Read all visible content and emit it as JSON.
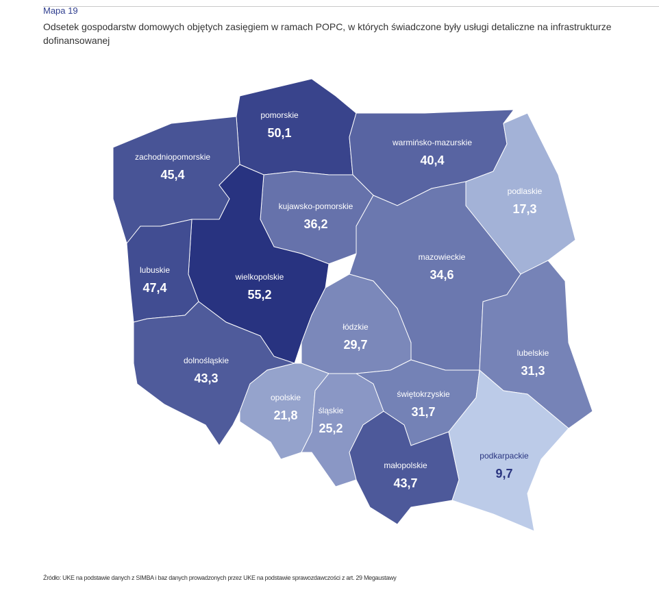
{
  "header": {
    "label": "Mapa 19",
    "title": "Odsetek gospodarstw domowych objętych zasięgiem w ramach POPC, w których świadczone były usługi detaliczne na infrastrukturze dofinansowanej"
  },
  "chart_data": {
    "type": "choropleth",
    "categories": [
      "pomorskie",
      "zachodniopomorskie",
      "warmińsko-mazurskie",
      "podlaskie",
      "kujawsko-pomorskie",
      "wielkopolskie",
      "lubuskie",
      "mazowieckie",
      "łódzkie",
      "dolnośląskie",
      "lubelskie",
      "opolskie",
      "śląskie",
      "świętokrzyskie",
      "małopolskie",
      "podkarpackie"
    ],
    "values": [
      50.1,
      45.4,
      40.4,
      17.3,
      36.2,
      55.2,
      47.4,
      34.6,
      29.7,
      43.3,
      31.3,
      21.8,
      25.2,
      31.7,
      43.7,
      9.7
    ],
    "value_labels": [
      "50,1",
      "45,4",
      "40,4",
      "17,3",
      "36,2",
      "55,2",
      "47,4",
      "34,6",
      "29,7",
      "43,3",
      "31,3",
      "21,8",
      "25,2",
      "31,7",
      "43,7",
      "9,7"
    ]
  },
  "source": "Źródło: UKE na podstawie danych z SIMBA i baz danych prowadzonych przez UKE na podstawie sprawozdawczości z art. 29 Megaustawy"
}
